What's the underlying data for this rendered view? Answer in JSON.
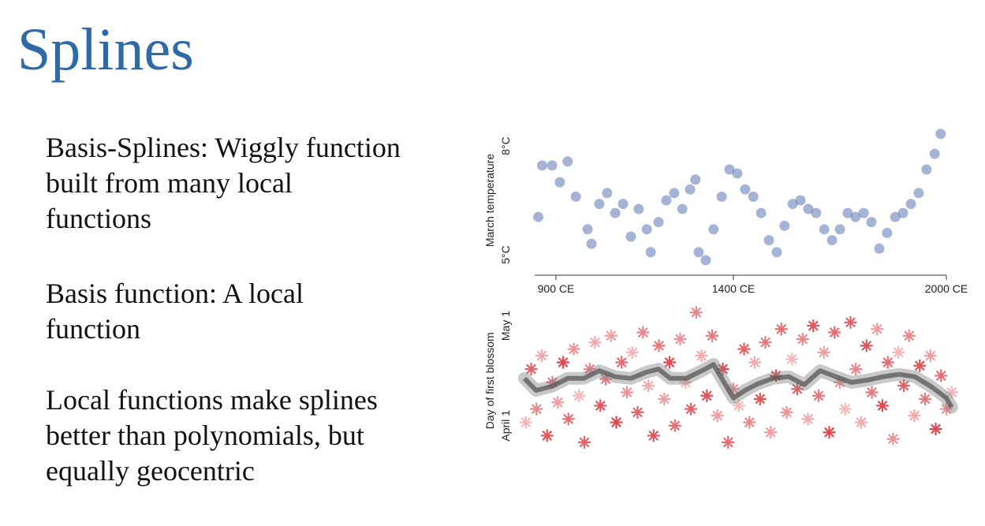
{
  "title": "Splines",
  "bullets": [
    [
      "Basis-Splines: Wiggly function",
      "built from many local",
      "functions"
    ],
    [
      "Basis function: A local",
      "function"
    ],
    [
      "Local functions make splines",
      "better than polynomials, but",
      "equally geocentric"
    ]
  ],
  "chart_data": [
    {
      "type": "scatter",
      "y_label": "March temperature",
      "color": "#5b76b5",
      "x": [
        850,
        861,
        889,
        911,
        933,
        956,
        989,
        1000,
        1022,
        1044,
        1067,
        1089,
        1111,
        1133,
        1156,
        1167,
        1189,
        1211,
        1233,
        1256,
        1278,
        1293,
        1302,
        1322,
        1344,
        1367,
        1389,
        1411,
        1433,
        1456,
        1478,
        1500,
        1522,
        1544,
        1567,
        1589,
        1611,
        1633,
        1656,
        1678,
        1700,
        1722,
        1744,
        1767,
        1789,
        1811,
        1833,
        1856,
        1878,
        1900,
        1922,
        1944,
        1967,
        1984
      ],
      "values": [
        6.04,
        7.46,
        7.46,
        7.0,
        7.57,
        6.6,
        5.7,
        5.3,
        6.4,
        6.7,
        6.15,
        6.4,
        5.5,
        6.26,
        5.7,
        5.07,
        5.9,
        6.5,
        6.7,
        6.26,
        6.8,
        7.07,
        5.07,
        4.85,
        5.7,
        6.6,
        7.35,
        7.24,
        6.8,
        6.6,
        6.15,
        5.4,
        5.07,
        5.8,
        6.4,
        6.5,
        6.26,
        6.15,
        5.7,
        5.4,
        5.7,
        6.15,
        6.04,
        6.15,
        5.9,
        5.17,
        5.6,
        6.04,
        6.15,
        6.4,
        6.7,
        7.35,
        7.78,
        8.33
      ],
      "xlim": [
        840,
        2010
      ],
      "ylim": [
        4.6,
        8.4
      ],
      "xticks": [
        {
          "value": 900,
          "label": "900 CE"
        },
        {
          "value": 1400,
          "label": "1400 CE"
        },
        {
          "value": 2000,
          "label": "2000 CE"
        }
      ],
      "yticks": [
        {
          "value": 5,
          "label": "5°C"
        },
        {
          "value": 8,
          "label": "8°C"
        }
      ]
    },
    {
      "type": "scatter",
      "y_label": "Day of first blossom",
      "color": "#d9343a",
      "line_color": "#555555",
      "x": [
        815,
        830,
        845,
        860,
        875,
        890,
        905,
        920,
        935,
        950,
        965,
        980,
        995,
        1010,
        1025,
        1040,
        1055,
        1070,
        1085,
        1100,
        1115,
        1130,
        1145,
        1160,
        1175,
        1190,
        1205,
        1220,
        1235,
        1250,
        1265,
        1280,
        1295,
        1310,
        1325,
        1340,
        1355,
        1370,
        1385,
        1400,
        1415,
        1430,
        1445,
        1460,
        1475,
        1490,
        1505,
        1520,
        1535,
        1550,
        1565,
        1580,
        1595,
        1610,
        1625,
        1640,
        1655,
        1670,
        1685,
        1700,
        1715,
        1730,
        1745,
        1760,
        1775,
        1790,
        1805,
        1820,
        1835,
        1850,
        1865,
        1880,
        1895,
        1910,
        1925,
        1940,
        1955,
        1970,
        1985,
        2000,
        2015
      ],
      "values": [
        92,
        108,
        96,
        112,
        88,
        104,
        98,
        110,
        93,
        114,
        100,
        86,
        108,
        116,
        97,
        105,
        118,
        92,
        110,
        101,
        113,
        95,
        119,
        103,
        88,
        115,
        99,
        110,
        91,
        117,
        104,
        96,
        125,
        112,
        100,
        118,
        94,
        108,
        86,
        102,
        97,
        114,
        92,
        110,
        99,
        116,
        89,
        106,
        120,
        95,
        111,
        102,
        117,
        93,
        121,
        100,
        113,
        89,
        119,
        104,
        96,
        122,
        108,
        92,
        115,
        101,
        120,
        97,
        110,
        87,
        113,
        103,
        118,
        94,
        109,
        99,
        112,
        90,
        106,
        96,
        101
      ],
      "spline": {
        "x": [
          811,
          844,
          889,
          933,
          978,
          1022,
          1067,
          1111,
          1156,
          1189,
          1222,
          1267,
          1311,
          1344,
          1367,
          1400,
          1433,
          1467,
          1511,
          1556,
          1600,
          1644,
          1689,
          1733,
          1778,
          1822,
          1867,
          1911,
          1956,
          2000,
          2015
        ],
        "values": [
          105.2,
          101.6,
          102.8,
          105.2,
          105.2,
          107.5,
          105.7,
          105.2,
          107.1,
          108.0,
          105.2,
          105.2,
          107.5,
          109.4,
          105.2,
          99.3,
          101.6,
          103.5,
          105.2,
          105.7,
          103.3,
          107.5,
          105.7,
          104.0,
          104.7,
          105.7,
          106.4,
          105.7,
          102.8,
          99.3,
          96.5
        ]
      },
      "xlim": [
        800,
        2040
      ],
      "ylim": [
        81,
        128
      ],
      "yticks": [
        {
          "value": 91,
          "label": "April 1"
        },
        {
          "value": 121,
          "label": "May 1"
        }
      ]
    }
  ]
}
